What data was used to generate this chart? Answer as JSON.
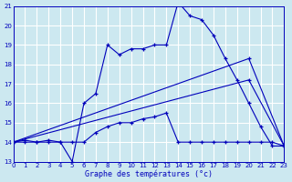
{
  "title": "Graphe des températures (°c)",
  "background_color": "#cce8f0",
  "grid_color": "#ffffff",
  "line_color": "#0000bb",
  "x_min": 0,
  "x_max": 23,
  "y_min": 13,
  "y_max": 21,
  "series1_x": [
    0,
    1,
    2,
    3,
    4,
    5,
    6,
    7,
    8,
    9,
    10,
    11,
    12,
    13,
    14,
    15,
    16,
    17,
    18,
    19,
    20,
    21,
    22,
    23
  ],
  "series1_y": [
    14.0,
    14.1,
    14.0,
    14.0,
    14.0,
    13.0,
    16.0,
    16.5,
    19.0,
    18.5,
    18.8,
    18.8,
    19.0,
    19.0,
    21.2,
    20.5,
    20.3,
    19.5,
    18.3,
    17.2,
    16.0,
    14.8,
    13.8,
    13.8
  ],
  "series2_x": [
    0,
    1,
    2,
    3,
    4,
    5,
    6,
    7,
    8,
    9,
    10,
    11,
    12,
    13,
    14,
    15,
    16,
    17,
    18,
    19,
    20,
    21,
    22,
    23
  ],
  "series2_y": [
    14.0,
    14.0,
    14.0,
    14.1,
    14.0,
    14.0,
    14.0,
    14.5,
    14.8,
    15.0,
    15.0,
    15.2,
    15.3,
    15.5,
    14.0,
    14.0,
    14.0,
    14.0,
    14.0,
    14.0,
    14.0,
    14.0,
    14.0,
    13.8
  ],
  "series3_x": [
    0,
    20,
    23
  ],
  "series3_y": [
    14.0,
    17.2,
    13.8
  ],
  "series4_x": [
    0,
    20,
    23
  ],
  "series4_y": [
    14.0,
    18.3,
    13.8
  ]
}
